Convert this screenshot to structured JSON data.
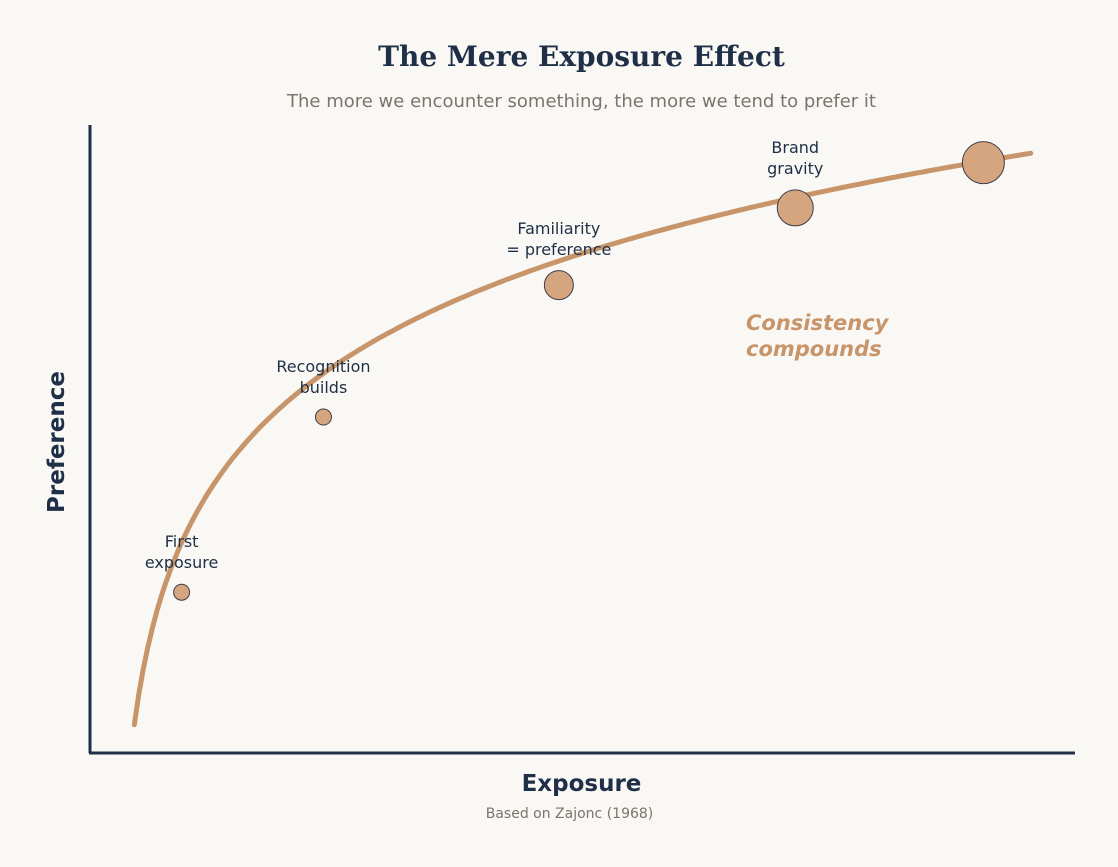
{
  "chart_data": {
    "type": "line",
    "title": "The Mere Exposure Effect",
    "subtitle": "The more we encounter something, the more we tend to prefer it",
    "xlabel": "Exposure",
    "ylabel": "Preference",
    "source": "Based on Zajonc (1968)",
    "xlim": [
      0,
      1
    ],
    "ylim": [
      0,
      1
    ],
    "grid": false,
    "x_ticks_shown": false,
    "y_ticks_shown": false,
    "curve": {
      "shape": "logarithmic",
      "x_start": 0.045,
      "x_end": 0.955,
      "y_start": 0.045,
      "y_end": 0.955
    },
    "points": [
      {
        "x": 0.093,
        "y": 0.256,
        "label": "First\nexposure",
        "size": "small"
      },
      {
        "x": 0.237,
        "y": 0.535,
        "label": "Recognition\nbuilds",
        "size": "small"
      },
      {
        "x": 0.476,
        "y": 0.745,
        "label": "Familiarity\n= preference",
        "size": "medium"
      },
      {
        "x": 0.716,
        "y": 0.868,
        "label": "Brand\ngravity",
        "size": "large"
      },
      {
        "x": 0.907,
        "y": 0.94,
        "label": "",
        "size": "largest"
      }
    ],
    "annotation": "Consistency\ncompounds",
    "colors": {
      "curve": "#c8956a",
      "marker_fill": "#d4a57e",
      "marker_edge": "#3c3c4a",
      "axis": "#1e2f47",
      "text": "#1e2f47",
      "subtitle": "#7a746c",
      "background": "#faf8f5"
    }
  }
}
